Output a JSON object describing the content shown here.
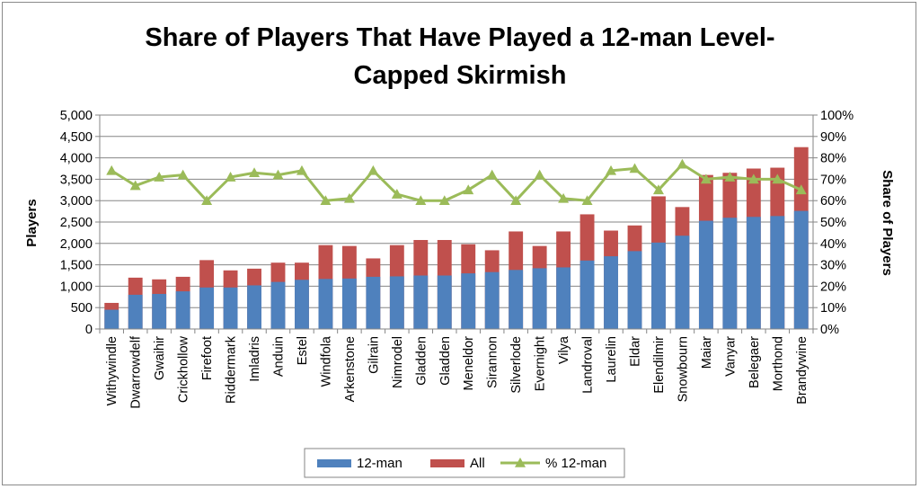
{
  "chart_data": {
    "type": "bar",
    "title_lines": [
      "Share of Players That Have Played a 12-man  Level-",
      "Capped Skirmish"
    ],
    "ylabel": "Players",
    "y2label": "Share of Players",
    "ylim": [
      0,
      5000
    ],
    "y_ticks": [
      "0",
      "500",
      "1,000",
      "1,500",
      "2,000",
      "2,500",
      "3,000",
      "3,500",
      "4,000",
      "4,500",
      "5,000"
    ],
    "y2lim": [
      0,
      100
    ],
    "y2_ticks": [
      "0%",
      "10%",
      "20%",
      "30%",
      "40%",
      "50%",
      "60%",
      "70%",
      "80%",
      "90%",
      "100%"
    ],
    "grid": true,
    "legend_position": "bottom",
    "categories": [
      "Withywindle",
      "Dwarrowdelf",
      "Gwaihir",
      "Crickhollow",
      "Firefoot",
      "Riddermark",
      "Imladris",
      "Anduin",
      "Estel",
      "Windfola",
      "Arkenstone",
      "Gilrain",
      "Nimrodel",
      "Gladden",
      "Gladden",
      "Meneldor",
      "Sirannon",
      "Silverlode",
      "Evernight",
      "Vilya",
      "Landroval",
      "Laurelin",
      "Eldar",
      "Elendilmir",
      "Snowbourn",
      "Maiar",
      "Vanyar",
      "Belegaer",
      "Morthond",
      "Brandywine"
    ],
    "series": [
      {
        "name": "12-man",
        "kind": "bar",
        "color": "#4f81bd",
        "values": [
          450,
          800,
          820,
          880,
          970,
          970,
          1020,
          1100,
          1150,
          1170,
          1180,
          1220,
          1230,
          1250,
          1250,
          1300,
          1330,
          1380,
          1420,
          1440,
          1600,
          1700,
          1820,
          2020,
          2180,
          2530,
          2600,
          2620,
          2640,
          2760
        ]
      },
      {
        "name": "All",
        "kind": "bar",
        "color": "#c0504d",
        "values": [
          610,
          1200,
          1160,
          1220,
          1610,
          1370,
          1410,
          1550,
          1550,
          1960,
          1940,
          1650,
          1960,
          2080,
          2080,
          1980,
          1840,
          2280,
          1940,
          2280,
          2680,
          2300,
          2420,
          3100,
          2850,
          3600,
          3650,
          3750,
          3770,
          4250
        ]
      },
      {
        "name": "% 12-man",
        "kind": "line",
        "axis": "y2",
        "color": "#9bbb59",
        "values": [
          74,
          67,
          71,
          72,
          60,
          71,
          73,
          72,
          74,
          60,
          61,
          74,
          63,
          60,
          60,
          65,
          72,
          60,
          72,
          61,
          60,
          74,
          75,
          65,
          77,
          70,
          71,
          70,
          70,
          65
        ]
      }
    ]
  }
}
